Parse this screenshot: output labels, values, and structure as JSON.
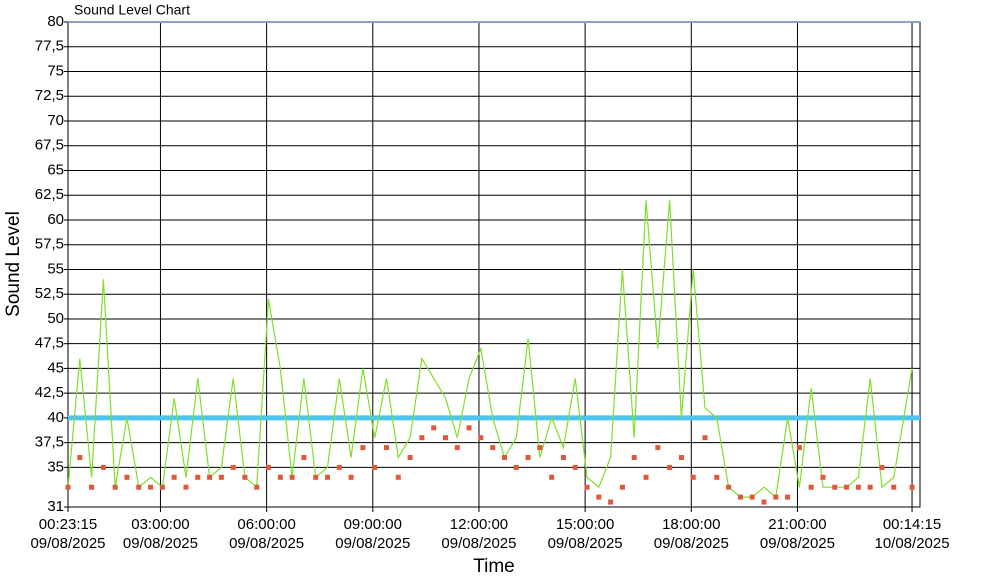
{
  "chart_data": {
    "type": "line",
    "title": "Sound Level Chart",
    "y_label": "Sound Level",
    "x_label": "Time",
    "x": [
      "2025-08-09T00:23:15",
      "2025-08-09T00:43:15",
      "2025-08-09T01:03:15",
      "2025-08-09T01:23:15",
      "2025-08-09T01:43:15",
      "2025-08-09T02:03:15",
      "2025-08-09T02:23:15",
      "2025-08-09T02:43:15",
      "2025-08-09T03:03:15",
      "2025-08-09T03:23:15",
      "2025-08-09T03:43:15",
      "2025-08-09T04:03:15",
      "2025-08-09T04:23:15",
      "2025-08-09T04:43:15",
      "2025-08-09T05:03:15",
      "2025-08-09T05:23:15",
      "2025-08-09T05:43:15",
      "2025-08-09T06:03:15",
      "2025-08-09T06:23:15",
      "2025-08-09T06:43:15",
      "2025-08-09T07:03:15",
      "2025-08-09T07:23:15",
      "2025-08-09T07:43:15",
      "2025-08-09T08:03:15",
      "2025-08-09T08:23:15",
      "2025-08-09T08:43:15",
      "2025-08-09T09:03:15",
      "2025-08-09T09:23:15",
      "2025-08-09T09:43:15",
      "2025-08-09T10:03:15",
      "2025-08-09T10:23:15",
      "2025-08-09T10:43:15",
      "2025-08-09T11:03:15",
      "2025-08-09T11:23:15",
      "2025-08-09T11:43:15",
      "2025-08-09T12:03:15",
      "2025-08-09T12:23:15",
      "2025-08-09T12:43:15",
      "2025-08-09T13:03:15",
      "2025-08-09T13:23:15",
      "2025-08-09T13:43:15",
      "2025-08-09T14:03:15",
      "2025-08-09T14:23:15",
      "2025-08-09T14:43:15",
      "2025-08-09T15:03:15",
      "2025-08-09T15:23:15",
      "2025-08-09T15:43:15",
      "2025-08-09T16:03:15",
      "2025-08-09T16:23:15",
      "2025-08-09T16:43:15",
      "2025-08-09T17:03:15",
      "2025-08-09T17:23:15",
      "2025-08-09T17:43:15",
      "2025-08-09T18:03:15",
      "2025-08-09T18:23:15",
      "2025-08-09T18:43:15",
      "2025-08-09T19:03:15",
      "2025-08-09T19:23:15",
      "2025-08-09T19:43:15",
      "2025-08-09T20:03:15",
      "2025-08-09T20:23:15",
      "2025-08-09T20:43:15",
      "2025-08-09T21:03:15",
      "2025-08-09T21:23:15",
      "2025-08-09T21:43:15",
      "2025-08-09T22:03:15",
      "2025-08-09T22:23:15",
      "2025-08-09T22:43:15",
      "2025-08-09T23:03:15",
      "2025-08-09T23:23:15",
      "2025-08-09T23:43:15",
      "2025-08-10T00:14:15"
    ],
    "series": [
      {
        "color": "#7ee02a",
        "marker": "line",
        "values": [
          33,
          46,
          34,
          54,
          33,
          40,
          33,
          34,
          33,
          42,
          34,
          44,
          34,
          35,
          44,
          34,
          33,
          52,
          45,
          34,
          44,
          34,
          35,
          44,
          36,
          45,
          38,
          44,
          36,
          38,
          46,
          44,
          42,
          38,
          44,
          47,
          40,
          36,
          38,
          48,
          36,
          40,
          37,
          44,
          34,
          33,
          36,
          55,
          38,
          62,
          47,
          62,
          40,
          55,
          41,
          40,
          33,
          32,
          32,
          33,
          32,
          40,
          33,
          43,
          33,
          33,
          33,
          34,
          44,
          33,
          34,
          45
        ]
      },
      {
        "color": "#e0583a",
        "marker": "square",
        "values": [
          33,
          36,
          33,
          35,
          33,
          34,
          33,
          33,
          33,
          34,
          33,
          34,
          34,
          34,
          35,
          34,
          33,
          35,
          34,
          34,
          36,
          34,
          34,
          35,
          34,
          37,
          35,
          37,
          34,
          36,
          38,
          39,
          38,
          37,
          39,
          38,
          37,
          36,
          35,
          36,
          37,
          34,
          36,
          35,
          33,
          32,
          31.5,
          33,
          36,
          34,
          37,
          35,
          36,
          34,
          38,
          34,
          33,
          32,
          32,
          31.5,
          32,
          32,
          37,
          33,
          34,
          33,
          33,
          33,
          33,
          35,
          33,
          33
        ]
      }
    ],
    "threshold": {
      "value": 40,
      "color": "#4fc3f0"
    },
    "xlim": [
      "2025-08-09T00:23:15",
      "2025-08-10T00:27:45"
    ],
    "xticks": [
      {
        "value": "2025-08-09T00:23:15",
        "label": "00:23:15\n09/08/2025"
      },
      {
        "value": "2025-08-09T03:00:00",
        "label": "03:00:00\n09/08/2025"
      },
      {
        "value": "2025-08-09T06:00:00",
        "label": "06:00:00\n09/08/2025"
      },
      {
        "value": "2025-08-09T09:00:00",
        "label": "09:00:00\n09/08/2025"
      },
      {
        "value": "2025-08-09T12:00:00",
        "label": "12:00:00\n09/08/2025"
      },
      {
        "value": "2025-08-09T15:00:00",
        "label": "15:00:00\n09/08/2025"
      },
      {
        "value": "2025-08-09T18:00:00",
        "label": "18:00:00\n09/08/2025"
      },
      {
        "value": "2025-08-09T21:00:00",
        "label": "21:00:00\n09/08/2025"
      },
      {
        "value": "2025-08-10T00:14:15",
        "label": "00:14:15\n10/08/2025"
      }
    ],
    "ylim": [
      31,
      80
    ],
    "yticks": [
      31,
      35,
      {
        "value": 37.5,
        "label": "37,5"
      },
      40,
      {
        "value": 42.5,
        "label": "42,5"
      },
      45,
      {
        "value": 47.5,
        "label": "47,5"
      },
      50,
      {
        "value": 52.5,
        "label": "52,5"
      },
      55,
      {
        "value": 57.5,
        "label": "57,5"
      },
      60,
      {
        "value": 62.5,
        "label": "62,5"
      },
      65,
      {
        "value": 67.5,
        "label": "67,5"
      },
      70,
      {
        "value": 72.5,
        "label": "72,5"
      },
      75,
      {
        "value": 77.5,
        "label": "77,5"
      },
      80
    ],
    "grid": true
  }
}
